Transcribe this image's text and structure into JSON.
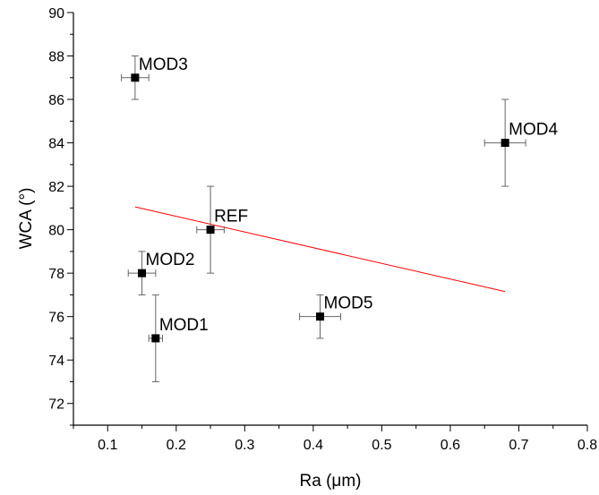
{
  "chart_data": {
    "type": "scatter",
    "title": "",
    "xlabel": "Ra (μm)",
    "ylabel": "WCA (°)",
    "xlim": [
      0.05,
      0.8
    ],
    "ylim": [
      71,
      90
    ],
    "xticks": [
      "0.1",
      "0.2",
      "0.3",
      "0.4",
      "0.5",
      "0.6",
      "0.7",
      "0.8"
    ],
    "yticks": [
      "72",
      "74",
      "76",
      "78",
      "80",
      "82",
      "84",
      "86",
      "88",
      "90"
    ],
    "grid": false,
    "points": [
      {
        "label": "MOD3",
        "x": 0.14,
        "y": 87,
        "xerr": 0.02,
        "yerr": 1
      },
      {
        "label": "MOD4",
        "x": 0.68,
        "y": 84,
        "xerr": 0.03,
        "yerr": 2
      },
      {
        "label": "REF",
        "x": 0.25,
        "y": 80,
        "xerr": 0.02,
        "yerr": 2
      },
      {
        "label": "MOD2",
        "x": 0.15,
        "y": 78,
        "xerr": 0.02,
        "yerr": 1
      },
      {
        "label": "MOD5",
        "x": 0.41,
        "y": 76,
        "xerr": 0.03,
        "yerr": 1
      },
      {
        "label": "MOD1",
        "x": 0.17,
        "y": 75,
        "xerr": 0.01,
        "yerr": 2
      }
    ],
    "fit_line": {
      "x": [
        0.14,
        0.68
      ],
      "y": [
        81.05,
        77.15
      ],
      "color": "#ff0000"
    },
    "marker_color": "#000000"
  }
}
